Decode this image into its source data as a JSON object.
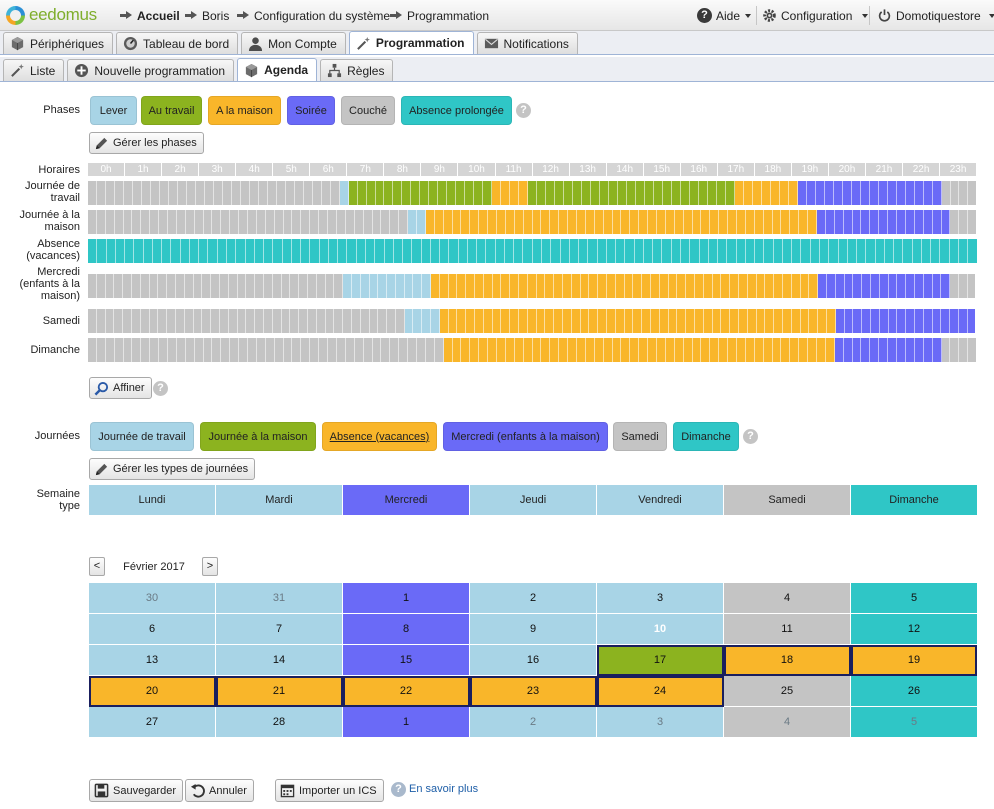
{
  "header": {
    "logo_text": "eedomus",
    "breadcrumb": [
      "Accueil",
      "Boris",
      "Configuration du système",
      "Programmation"
    ],
    "help_label": "Aide",
    "config_label": "Configuration",
    "user_label": "Domotiquestore"
  },
  "tabs_main": [
    {
      "label": "Périphériques",
      "icon": "cube-icon",
      "active": false
    },
    {
      "label": "Tableau de bord",
      "icon": "gauge-icon",
      "active": false
    },
    {
      "label": "Mon Compte",
      "icon": "user-icon",
      "active": false
    },
    {
      "label": "Programmation",
      "icon": "magic-wand-icon",
      "active": true
    },
    {
      "label": "Notifications",
      "icon": "envelope-icon",
      "active": false
    }
  ],
  "tabs_sub": [
    {
      "label": "Liste",
      "icon": "magic-wand-icon",
      "active": false
    },
    {
      "label": "Nouvelle programmation",
      "icon": "plus-circle-icon",
      "active": false
    },
    {
      "label": "Agenda",
      "icon": "cube-icon",
      "active": true
    },
    {
      "label": "Règles",
      "icon": "tree-icon",
      "active": false
    }
  ],
  "colors": {
    "lever": "#a8d4e6",
    "travail": "#8cb31f",
    "maison": "#f9b62a",
    "soiree": "#6a6af7",
    "couche": "#c4c4c4",
    "absence": "#2fc6c6"
  },
  "phases": {
    "label": "Phases",
    "items": [
      {
        "label": "Lever",
        "color": "#a8d4e6"
      },
      {
        "label": "Au travail",
        "color": "#8cb31f"
      },
      {
        "label": "A la maison",
        "color": "#f9b62a"
      },
      {
        "label": "Soirée",
        "color": "#6a6af7"
      },
      {
        "label": "Couché",
        "color": "#c4c4c4"
      },
      {
        "label": "Absence prolongée",
        "color": "#2fc6c6"
      }
    ],
    "manage_label": "Gérer les phases"
  },
  "schedule": {
    "label": "Horaires",
    "hours": [
      "0h",
      "1h",
      "2h",
      "3h",
      "4h",
      "5h",
      "6h",
      "7h",
      "8h",
      "9h",
      "10h",
      "11h",
      "12h",
      "13h",
      "14h",
      "15h",
      "16h",
      "17h",
      "18h",
      "19h",
      "20h",
      "21h",
      "22h",
      "23h"
    ],
    "rows": [
      {
        "label": "Journée de travail",
        "slots": "CCCCCCCCCCCCCCCCCCCCCCCCCCCCLTTTTTTTTTTTTTTTTMMMMTTTTTTTTTTTTTTTTTTTTTTTMMMMMMMSSSSSSSSSSSSSSSSCCCC"
      },
      {
        "label": "Journée à la maison",
        "slots": "CCCCCCCCCCCCCCCCCCCCCCCCCCCCCCCCCCCCLLMMMMMMMMMMMMMMMMMMMMMMMMMMMMMMMMMMMMMMMMMMMMSSSSSSSSSSSSSSSCCC"
      },
      {
        "label": "Absence (vacances)",
        "slots": "AAAAAAAAAAAAAAAAAAAAAAAAAAAAAAAAAAAAAAAAAAAAAAAAAAAAAAAAAAAAAAAAAAAAAAAAAAAAAAAAAAAAAAAAAAAAAAAA"
      },
      {
        "label": "Mercredi (enfants à la maison)",
        "slots": "CCCCCCCCCCCCCCCCCCCCCCCCCCCCCLLLLLLLLLLMMMMMMMMMMMMMMMMMMMMMMMMMMMMMMMMMMMMMMMMMMMMSSSSSSSSSSSSSSSCCC"
      },
      {
        "label": "Samedi",
        "slots": "CCCCCCCCCCCCCCCCCCCCCCCCCCCCCCCCCCCCLLLLMMMMMMMMMMMMMMMMMMMMMMMMMMMMMMMMMMMMMMMMMMMMMSSSSSSSSSSSSSSSS"
      },
      {
        "label": "Dimanche",
        "slots": "CCCCCCCCCCCCCCCCCCCCCCCCCCCCCCCCCCCCCCCCMMMMMMMMMMMMMMMMMMMMMMMMMMMMMMMMMMMMMMMMMMMMSSSSSSSSSSSSCCCC"
      }
    ],
    "refine_label": "Affiner"
  },
  "day_types": {
    "label": "Journées",
    "items": [
      {
        "label": "Journée de travail",
        "color": "#a8d4e6"
      },
      {
        "label": "Journée à la maison",
        "color": "#8cb31f"
      },
      {
        "label": "Absence (vacances)",
        "color": "#f9b62a",
        "underline": true
      },
      {
        "label": "Mercredi (enfants à la maison)",
        "color": "#6a6af7"
      },
      {
        "label": "Samedi",
        "color": "#c4c4c4"
      },
      {
        "label": "Dimanche",
        "color": "#2fc6c6"
      }
    ],
    "manage_label": "Gérer les types de journées"
  },
  "week": {
    "label": "Semaine type",
    "days": [
      {
        "label": "Lundi",
        "color": "#a8d4e6"
      },
      {
        "label": "Mardi",
        "color": "#a8d4e6"
      },
      {
        "label": "Mercredi",
        "color": "#6a6af7"
      },
      {
        "label": "Jeudi",
        "color": "#a8d4e6"
      },
      {
        "label": "Vendredi",
        "color": "#a8d4e6"
      },
      {
        "label": "Samedi",
        "color": "#c4c4c4"
      },
      {
        "label": "Dimanche",
        "color": "#2fc6c6"
      }
    ]
  },
  "calendar": {
    "month_label": "Février 2017",
    "prev_label": "<",
    "next_label": ">",
    "weeks": [
      [
        {
          "d": "30",
          "c": "#a8d4e6",
          "dim": true
        },
        {
          "d": "31",
          "c": "#a8d4e6",
          "dim": true
        },
        {
          "d": "1",
          "c": "#6a6af7"
        },
        {
          "d": "2",
          "c": "#a8d4e6"
        },
        {
          "d": "3",
          "c": "#a8d4e6"
        },
        {
          "d": "4",
          "c": "#c4c4c4"
        },
        {
          "d": "5",
          "c": "#2fc6c6"
        }
      ],
      [
        {
          "d": "6",
          "c": "#a8d4e6"
        },
        {
          "d": "7",
          "c": "#a8d4e6"
        },
        {
          "d": "8",
          "c": "#6a6af7"
        },
        {
          "d": "9",
          "c": "#a8d4e6"
        },
        {
          "d": "10",
          "c": "#a8d4e6",
          "today": true
        },
        {
          "d": "11",
          "c": "#c4c4c4"
        },
        {
          "d": "12",
          "c": "#2fc6c6"
        }
      ],
      [
        {
          "d": "13",
          "c": "#a8d4e6"
        },
        {
          "d": "14",
          "c": "#a8d4e6"
        },
        {
          "d": "15",
          "c": "#6a6af7"
        },
        {
          "d": "16",
          "c": "#a8d4e6"
        },
        {
          "d": "17",
          "c": "#8cb31f",
          "sel": true
        },
        {
          "d": "18",
          "c": "#f9b62a",
          "sel": true
        },
        {
          "d": "19",
          "c": "#f9b62a",
          "sel": true
        }
      ],
      [
        {
          "d": "20",
          "c": "#f9b62a",
          "sel": true
        },
        {
          "d": "21",
          "c": "#f9b62a",
          "sel": true
        },
        {
          "d": "22",
          "c": "#f9b62a",
          "sel": true
        },
        {
          "d": "23",
          "c": "#f9b62a",
          "sel": true
        },
        {
          "d": "24",
          "c": "#f9b62a",
          "sel": true
        },
        {
          "d": "25",
          "c": "#c4c4c4"
        },
        {
          "d": "26",
          "c": "#2fc6c6"
        }
      ],
      [
        {
          "d": "27",
          "c": "#a8d4e6"
        },
        {
          "d": "28",
          "c": "#a8d4e6"
        },
        {
          "d": "1",
          "c": "#6a6af7"
        },
        {
          "d": "2",
          "c": "#a8d4e6",
          "dim": true
        },
        {
          "d": "3",
          "c": "#a8d4e6",
          "dim": true
        },
        {
          "d": "4",
          "c": "#c4c4c4",
          "dim": true
        },
        {
          "d": "5",
          "c": "#2fc6c6",
          "dim": true
        }
      ]
    ]
  },
  "footer": {
    "save_label": "Sauvegarder",
    "cancel_label": "Annuler",
    "import_label": "Importer un ICS",
    "learn_more_label": "En savoir plus"
  }
}
